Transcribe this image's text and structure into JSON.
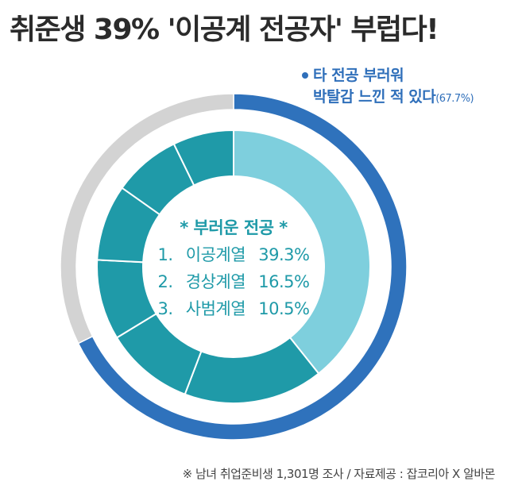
{
  "title": "취준생 39% '이공계 전공자' 부럽다!",
  "callout": {
    "line1": "타 전공 부러워",
    "line2": "박탈감 느낀 적 있다",
    "percent_label": "(67.7%)"
  },
  "center": {
    "heading": "* 부러운 전공 *",
    "items": [
      {
        "rank": "1.",
        "name": "이공계열",
        "value": "39.3%"
      },
      {
        "rank": "2.",
        "name": "경상계열",
        "value": "16.5%"
      },
      {
        "rank": "3.",
        "name": "사범계열",
        "value": "10.5%"
      }
    ]
  },
  "footer": "※ 남녀 취업준비생 1,301명 조사 / 자료제공 : 잡코리아 X 알바몬",
  "colors": {
    "outer_highlight": "#2f72bc",
    "outer_rest": "#d3d3d3",
    "inner_highlight": "#7ecfdd",
    "inner_rest": "#1f9aa8",
    "text_accent": "#1f9aa8",
    "callout": "#2f6fba"
  },
  "chart_data": [
    {
      "type": "pie",
      "categories": [
        "타 전공 부러워 박탈감 느낀 적 있다",
        ""
      ],
      "values": [
        67.7,
        32.3
      ]
    },
    {
      "type": "pie",
      "categories": [
        "이공계열",
        "경상계열",
        "사범계열",
        "",
        "",
        "",
        ""
      ],
      "values": [
        39.3,
        16.5,
        10.5,
        9.5,
        9.0,
        8.0,
        7.2
      ]
    }
  ]
}
